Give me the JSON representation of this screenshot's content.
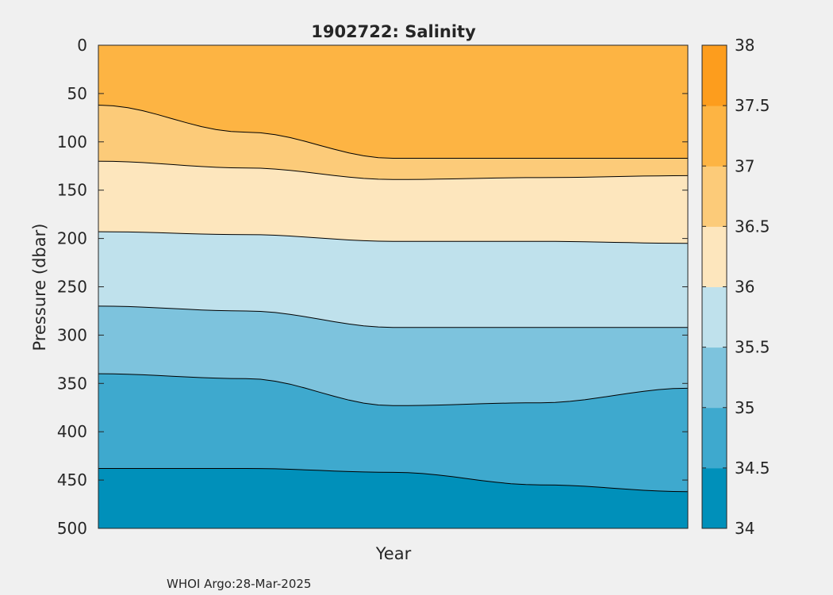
{
  "chart_data": {
    "type": "filled-contour",
    "title": "1902722:  Salinity",
    "xlabel": "Year",
    "ylabel": "Pressure (dbar)",
    "ylim": [
      0,
      500
    ],
    "y_reversed": true,
    "yticks": [
      "0",
      "50",
      "100",
      "150",
      "200",
      "250",
      "300",
      "350",
      "400",
      "450",
      "500"
    ],
    "colorbar": {
      "range": [
        34,
        38
      ],
      "ticks": [
        "34",
        "34.5",
        "35",
        "35.5",
        "36",
        "36.5",
        "37",
        "37.5",
        "38"
      ],
      "band_colors": [
        "#0090ba",
        "#3ea9ce",
        "#7dc3dd",
        "#bfe1ec",
        "#fde6bd",
        "#fccb79",
        "#fdb443",
        "#fd9d1d"
      ]
    },
    "contour_levels": [
      {
        "level": 34.5,
        "pressure": [
          438,
          438,
          442,
          455,
          462
        ]
      },
      {
        "level": 35.0,
        "pressure": [
          340,
          345,
          373,
          370,
          355
        ]
      },
      {
        "level": 35.5,
        "pressure": [
          270,
          275,
          292,
          292,
          292
        ]
      },
      {
        "level": 36.0,
        "pressure": [
          193,
          196,
          203,
          203,
          205
        ]
      },
      {
        "level": 36.5,
        "pressure": [
          120,
          127,
          139,
          137,
          135
        ]
      },
      {
        "level": 37.0,
        "pressure": [
          62,
          90,
          117,
          117,
          117
        ]
      }
    ],
    "credit": "WHOI Argo:28-Mar-2025"
  }
}
